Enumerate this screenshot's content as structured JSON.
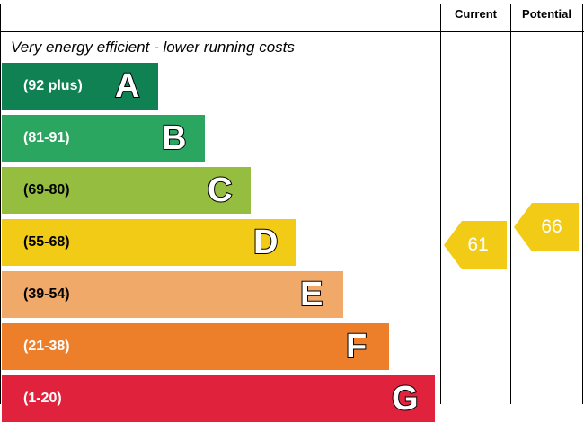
{
  "header": {
    "current_label": "Current",
    "potential_label": "Potential"
  },
  "tagline": "Very energy efficient - lower running costs",
  "chart_data": {
    "type": "bar",
    "categories": [
      "A",
      "B",
      "C",
      "D",
      "E",
      "F",
      "G"
    ],
    "ranges": [
      "(92 plus)",
      "(81-91)",
      "(69-80)",
      "(55-68)",
      "(39-54)",
      "(21-38)",
      "(1-20)"
    ],
    "colors": [
      "#0f8152",
      "#2aa660",
      "#95bd3f",
      "#f2cb16",
      "#f0a969",
      "#ee7f2a",
      "#e1223c"
    ],
    "current": {
      "value": "61",
      "band": "D",
      "color": "#f2cb16"
    },
    "potential": {
      "value": "66",
      "band": "D",
      "color": "#f2cb16"
    }
  }
}
